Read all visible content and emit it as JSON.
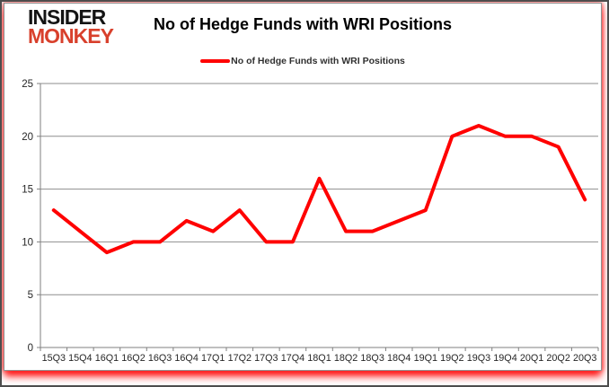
{
  "logo": {
    "line1": "INSIDER",
    "line2": "MONKEY"
  },
  "header": {
    "title": "No of Hedge Funds with WRI Positions"
  },
  "legend": {
    "label": "No of Hedge Funds with WRI Positions"
  },
  "colors": {
    "line": "#ff0000",
    "logo_text": "#141414",
    "logo_accent": "#d8402c",
    "grid": "#8e8e8e",
    "axis": "#7f7f7f",
    "tick_label": "#262626",
    "panel_border": "#919191",
    "glow": "#ff0000",
    "frame_border": "#4d4d4d",
    "background": "#ffffff"
  },
  "chart_data": {
    "type": "line",
    "title": "No of Hedge Funds with WRI Positions",
    "categories": [
      "15Q3",
      "15Q4",
      "16Q1",
      "16Q2",
      "16Q3",
      "16Q4",
      "17Q1",
      "17Q2",
      "17Q3",
      "17Q4",
      "18Q1",
      "18Q2",
      "18Q3",
      "18Q4",
      "19Q1",
      "19Q2",
      "19Q3",
      "19Q4",
      "20Q1",
      "20Q2",
      "20Q3"
    ],
    "series": [
      {
        "name": "No of Hedge Funds with WRI Positions",
        "values": [
          13,
          11,
          9,
          10,
          10,
          12,
          11,
          13,
          10,
          10,
          16,
          11,
          11,
          12,
          13,
          20,
          21,
          20,
          20,
          19,
          14
        ]
      }
    ],
    "xlabel": "",
    "ylabel": "",
    "ylim": [
      0,
      25
    ],
    "yticks": [
      0,
      5,
      10,
      15,
      20,
      25
    ],
    "grid": true,
    "legend_position": "top-center",
    "line_width": 4
  }
}
